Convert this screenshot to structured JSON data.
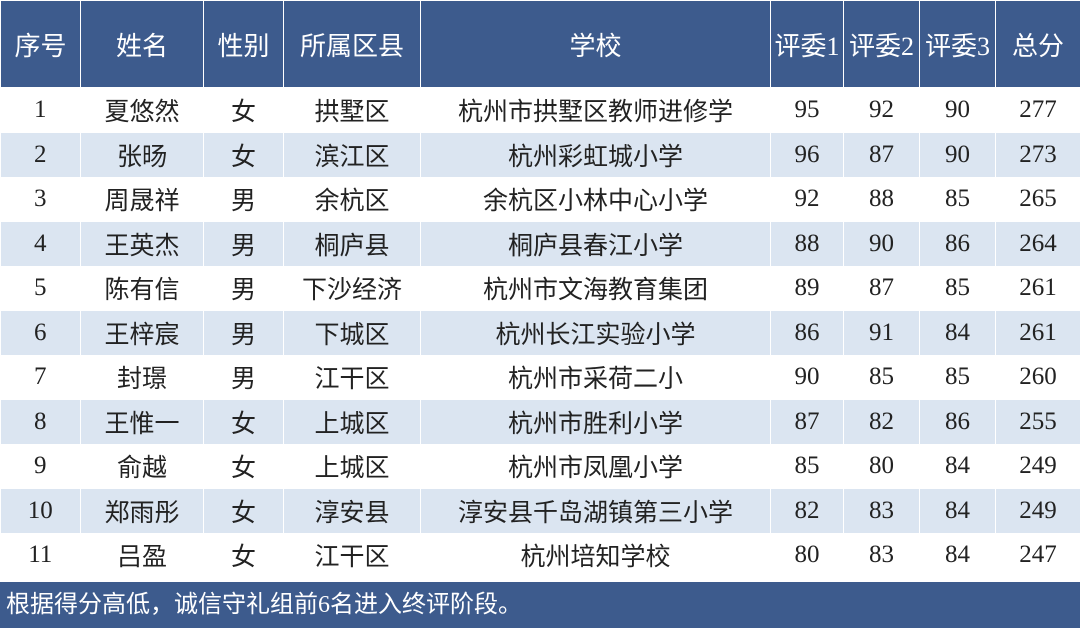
{
  "table": {
    "headers": [
      "序号",
      "姓名",
      "性别",
      "所属区县",
      "学校",
      "评委1",
      "评委2",
      "评委3",
      "总分"
    ],
    "rows": [
      [
        1,
        "夏悠然",
        "女",
        "拱墅区",
        "杭州市拱墅区教师进修学",
        95,
        92,
        90,
        277
      ],
      [
        2,
        "张旸",
        "女",
        "滨江区",
        "杭州彩虹城小学",
        96,
        87,
        90,
        273
      ],
      [
        3,
        "周晟祥",
        "男",
        "余杭区",
        "余杭区小林中心小学",
        92,
        88,
        85,
        265
      ],
      [
        4,
        "王英杰",
        "男",
        "桐庐县",
        "桐庐县春江小学",
        88,
        90,
        86,
        264
      ],
      [
        5,
        "陈有信",
        "男",
        "下沙经济",
        "杭州市文海教育集团",
        89,
        87,
        85,
        261
      ],
      [
        6,
        "王梓宸",
        "男",
        "下城区",
        "杭州长江实验小学",
        86,
        91,
        84,
        261
      ],
      [
        7,
        "封璟",
        "男",
        "江干区",
        "杭州市采荷二小",
        90,
        85,
        85,
        260
      ],
      [
        8,
        "王惟一",
        "女",
        "上城区",
        "杭州市胜利小学",
        87,
        82,
        86,
        255
      ],
      [
        9,
        "俞越",
        "女",
        "上城区",
        "杭州市凤凰小学",
        85,
        80,
        84,
        249
      ],
      [
        10,
        "郑雨彤",
        "女",
        "淳安县",
        "淳安县千岛湖镇第三小学",
        82,
        83,
        84,
        249
      ],
      [
        11,
        "吕盈",
        "女",
        "江干区",
        "杭州培知学校",
        80,
        83,
        84,
        247
      ]
    ]
  },
  "footer": {
    "note": "根据得分高低，诚信守礼组前6名进入终评阶段。"
  }
}
